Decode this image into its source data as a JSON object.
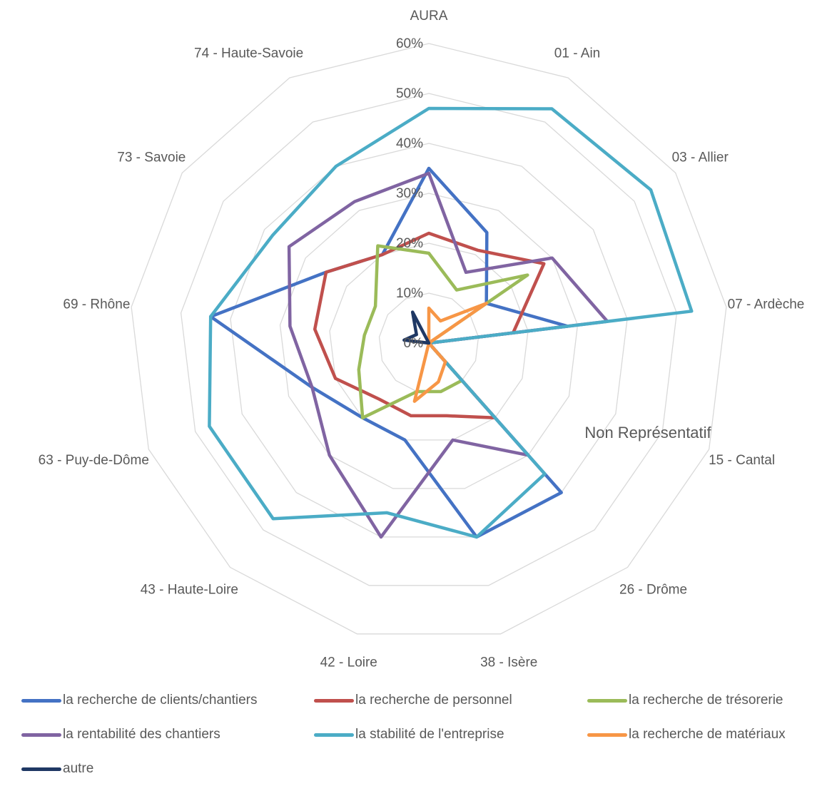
{
  "chart_data": {
    "type": "radar",
    "categories": [
      "AURA",
      "01 - Ain",
      "03 - Allier",
      "07 - Ardèche",
      "15 - Cantal",
      "26 - Drôme",
      "38 - Isère",
      "42 - Loire",
      "43 - Haute-Loire",
      "63 - Puy-de-Dôme",
      "69 - Rhône",
      "73 - Savoie",
      "74 - Haute-Savoie"
    ],
    "axis": {
      "min": 0,
      "max": 60,
      "step": 10,
      "tick_labels": [
        "0%",
        "10%",
        "20%",
        "30%",
        "40%",
        "50%",
        "60%"
      ]
    },
    "grid": true,
    "legend_position": "bottom",
    "annotation": "Non Représentatif",
    "series": [
      {
        "name": "la recherche de clients/chantiers",
        "color": "#4472C4",
        "values": [
          35,
          25,
          14,
          28,
          0,
          40,
          40,
          20,
          20,
          25,
          44,
          25,
          20
        ]
      },
      {
        "name": "la recherche de personnel",
        "color": "#C0504D",
        "values": [
          22,
          21,
          28,
          17,
          0,
          20,
          15,
          15,
          15,
          20,
          23,
          25,
          20
        ]
      },
      {
        "name": "la recherche de trésorerie",
        "color": "#9BBB59",
        "values": [
          18,
          12,
          24,
          0,
          0,
          10,
          10,
          10,
          20,
          15,
          13,
          13,
          22
        ]
      },
      {
        "name": "la rentabilité des chantiers",
        "color": "#8064A2",
        "values": [
          34,
          16,
          30,
          36,
          0,
          30,
          20,
          40,
          30,
          25,
          28,
          34,
          32
        ]
      },
      {
        "name": "la stabilité de l'entreprise",
        "color": "#4BACC6",
        "values": [
          47,
          53,
          54,
          53,
          0,
          35,
          40,
          35,
          47,
          47,
          44,
          38,
          40
        ]
      },
      {
        "name": "la recherche de matériaux",
        "color": "#F79646",
        "values": [
          7,
          5,
          14,
          0,
          0,
          5,
          8,
          12,
          0,
          0,
          4,
          0,
          0
        ]
      },
      {
        "name": "autre",
        "color": "#1F3864",
        "values": [
          0,
          0,
          0,
          0,
          0,
          0,
          0,
          0,
          0,
          0,
          5,
          3,
          7
        ]
      }
    ]
  }
}
